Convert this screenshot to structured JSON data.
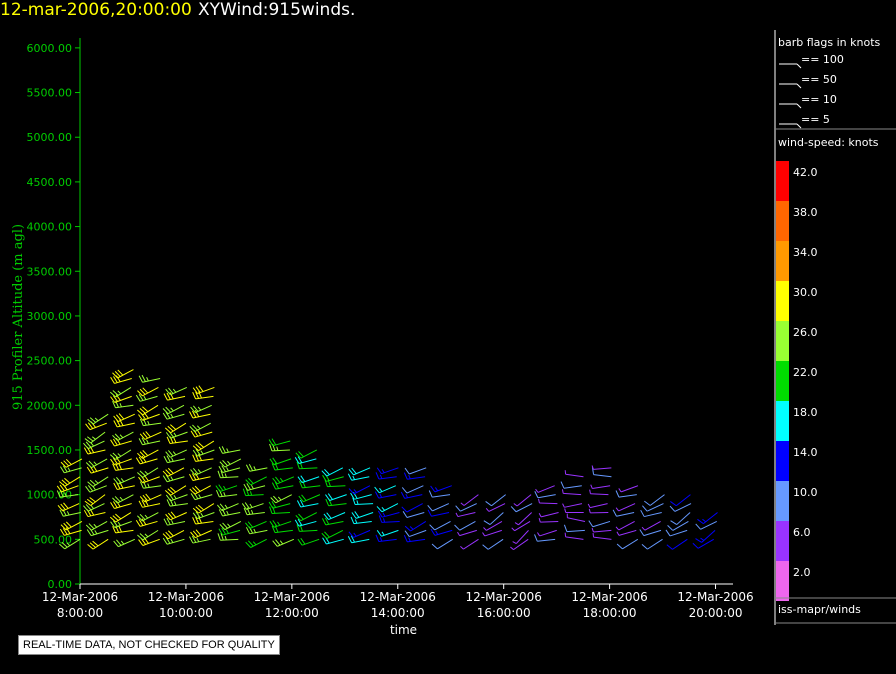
{
  "header": {
    "datetime": "12-mar-2006,20:00:00",
    "title": "XYWind:915winds."
  },
  "quality_note": "REAL-TIME DATA, NOT CHECKED FOR QUALITY",
  "barb_legend": {
    "title": "barb flags in knots",
    "items": [
      "== 100",
      "== 50",
      "== 10",
      "== 5"
    ]
  },
  "speed_legend": {
    "title": "wind-speed: knots",
    "bins": [
      {
        "label": "42.0",
        "color": "#ff0000"
      },
      {
        "label": "38.0",
        "color": "#ff6600"
      },
      {
        "label": "34.0",
        "color": "#ff9900"
      },
      {
        "label": "30.0",
        "color": "#ffff00"
      },
      {
        "label": "26.0",
        "color": "#99ff33"
      },
      {
        "label": "22.0",
        "color": "#00dd00"
      },
      {
        "label": "18.0",
        "color": "#00ffff"
      },
      {
        "label": "14.0",
        "color": "#0000ff"
      },
      {
        "label": "10.0",
        "color": "#6699ff"
      },
      {
        "label": "6.0",
        "color": "#9933ff"
      },
      {
        "label": "2.0",
        "color": "#ee66ee"
      }
    ]
  },
  "product": "iss-mapr/winds",
  "colors": {
    "axis": "#00cc00",
    "background": "#000000",
    "title_time": "#ffff00"
  },
  "chart_data": {
    "type": "scatter",
    "ylabel": "915 Profiler Altitude (m agl)",
    "xlabel": "time",
    "ylim": [
      0,
      6200
    ],
    "xlim_hours": [
      8.0,
      20.33
    ],
    "yticks": [
      "0.00",
      "500.00",
      "1000.00",
      "1500.00",
      "2000.00",
      "2500.00",
      "3000.00",
      "3500.00",
      "4000.00",
      "4500.00",
      "5000.00",
      "5500.00",
      "6000.00"
    ],
    "xticks": [
      {
        "hour": 8,
        "date": "12-Mar-2006",
        "time": "8:00:00"
      },
      {
        "hour": 10,
        "date": "12-Mar-2006",
        "time": "10:00:00"
      },
      {
        "hour": 12,
        "date": "12-Mar-2006",
        "time": "12:00:00"
      },
      {
        "hour": 14,
        "date": "12-Mar-2006",
        "time": "14:00:00"
      },
      {
        "hour": 16,
        "date": "12-Mar-2006",
        "time": "16:00:00"
      },
      {
        "hour": 18,
        "date": "12-Mar-2006",
        "time": "18:00:00"
      },
      {
        "hour": 20,
        "date": "12-Mar-2006",
        "time": "20:00:00"
      }
    ],
    "profiles": [
      {
        "hour": 8.0,
        "alt_top": 1450,
        "speed": 28,
        "dir": 250
      },
      {
        "hour": 8.5,
        "alt_top": 1950,
        "speed": 27,
        "dir": 245
      },
      {
        "hour": 9.0,
        "alt_top": 2450,
        "speed": 28,
        "dir": 250
      },
      {
        "hour": 9.5,
        "alt_top": 2350,
        "speed": 28,
        "dir": 250
      },
      {
        "hour": 10.0,
        "alt_top": 2250,
        "speed": 27,
        "dir": 250
      },
      {
        "hour": 10.5,
        "alt_top": 2250,
        "speed": 28,
        "dir": 250
      },
      {
        "hour": 11.0,
        "alt_top": 1550,
        "speed": 25,
        "dir": 255
      },
      {
        "hour": 11.5,
        "alt_top": 1350,
        "speed": 24,
        "dir": 255
      },
      {
        "hour": 12.0,
        "alt_top": 1600,
        "speed": 22,
        "dir": 255
      },
      {
        "hour": 12.5,
        "alt_top": 1550,
        "speed": 20,
        "dir": 255
      },
      {
        "hour": 13.0,
        "alt_top": 1350,
        "speed": 20,
        "dir": 255
      },
      {
        "hour": 13.5,
        "alt_top": 1350,
        "speed": 17,
        "dir": 255
      },
      {
        "hour": 14.0,
        "alt_top": 1350,
        "speed": 15,
        "dir": 255
      },
      {
        "hour": 14.5,
        "alt_top": 1300,
        "speed": 12,
        "dir": 250
      },
      {
        "hour": 15.0,
        "alt_top": 1100,
        "speed": 11,
        "dir": 250
      },
      {
        "hour": 15.5,
        "alt_top": 1050,
        "speed": 7,
        "dir": 245
      },
      {
        "hour": 16.0,
        "alt_top": 1050,
        "speed": 7,
        "dir": 240
      },
      {
        "hour": 16.5,
        "alt_top": 1050,
        "speed": 6,
        "dir": 235
      },
      {
        "hour": 17.0,
        "alt_top": 1150,
        "speed": 6,
        "dir": 260
      },
      {
        "hour": 17.5,
        "alt_top": 1250,
        "speed": 6,
        "dir": 270
      },
      {
        "hour": 18.0,
        "alt_top": 1300,
        "speed": 6,
        "dir": 265
      },
      {
        "hour": 18.5,
        "alt_top": 1150,
        "speed": 7,
        "dir": 250
      },
      {
        "hour": 19.0,
        "alt_top": 1050,
        "speed": 9,
        "dir": 245
      },
      {
        "hour": 19.5,
        "alt_top": 1000,
        "speed": 10,
        "dir": 240
      },
      {
        "hour": 20.0,
        "alt_top": 850,
        "speed": 12,
        "dir": 240
      }
    ],
    "alt_bottom": 500,
    "alt_step": 100
  }
}
